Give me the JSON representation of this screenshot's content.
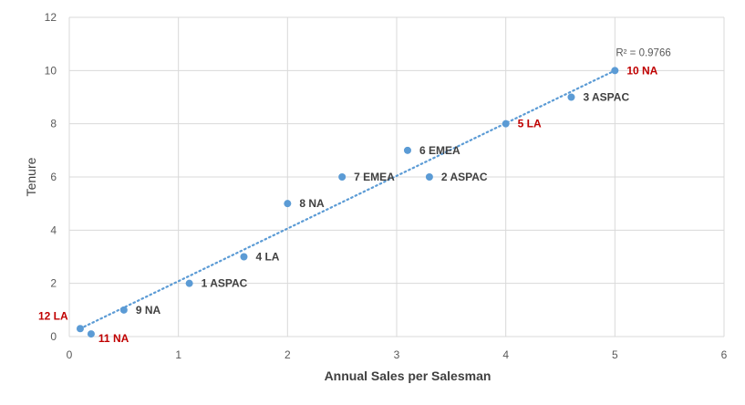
{
  "chart_data": {
    "type": "scatter",
    "title": "",
    "xlabel": "Annual Sales per Salesman",
    "ylabel": "Tenure",
    "xlim": [
      0,
      6
    ],
    "ylim": [
      0,
      12
    ],
    "x_ticks": [
      "0",
      "1",
      "2",
      "3",
      "4",
      "5",
      "6"
    ],
    "y_ticks": [
      "0",
      "2",
      "4",
      "6",
      "8",
      "10",
      "12"
    ],
    "grid": true,
    "legend": "none",
    "marker_color": "#5b9bd5",
    "highlight_color": "#c00000",
    "trendline": {
      "type": "linear",
      "style": "dotted",
      "r_squared_label": "R² = 0.9766",
      "from": [
        0.1,
        0.3
      ],
      "to": [
        5.0,
        10.0
      ]
    },
    "points": [
      {
        "x": 1.1,
        "y": 2,
        "label": "1 ASPAC",
        "highlight": false
      },
      {
        "x": 3.3,
        "y": 6,
        "label": "2 ASPAC",
        "highlight": false
      },
      {
        "x": 4.6,
        "y": 9,
        "label": "3 ASPAC",
        "highlight": false
      },
      {
        "x": 1.6,
        "y": 3,
        "label": "4 LA",
        "highlight": false
      },
      {
        "x": 4.0,
        "y": 8,
        "label": "5 LA",
        "highlight": true
      },
      {
        "x": 3.1,
        "y": 7,
        "label": "6 EMEA",
        "highlight": false
      },
      {
        "x": 2.5,
        "y": 6,
        "label": "7 EMEA",
        "highlight": false
      },
      {
        "x": 2.0,
        "y": 5,
        "label": "8 NA",
        "highlight": false
      },
      {
        "x": 0.5,
        "y": 1,
        "label": "9 NA",
        "highlight": false
      },
      {
        "x": 5.0,
        "y": 10,
        "label": "10 NA",
        "highlight": true
      },
      {
        "x": 0.2,
        "y": 0.1,
        "label": "11 NA",
        "highlight": true
      },
      {
        "x": 0.1,
        "y": 0.3,
        "label": "12 LA",
        "highlight": true
      }
    ]
  }
}
